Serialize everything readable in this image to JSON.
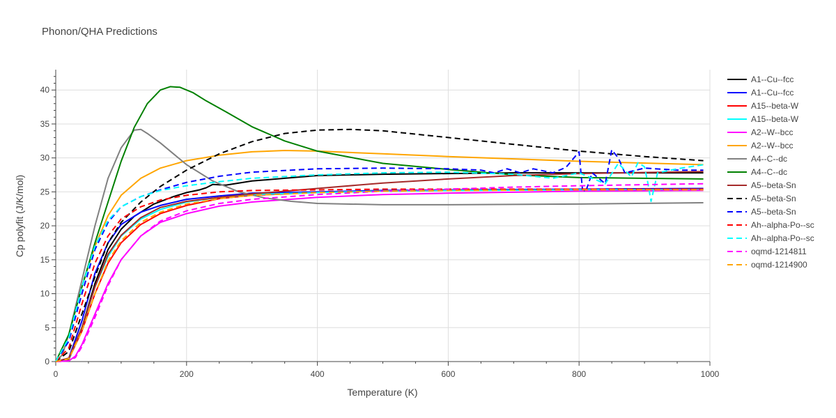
{
  "chart_data": {
    "type": "line",
    "title": "Phonon/QHA Predictions",
    "xlabel": "Temperature (K)",
    "ylabel": "Cp polyfit (J/K/mol)",
    "xlim": [
      0,
      1000
    ],
    "ylim": [
      0,
      43
    ],
    "xticks": [
      0,
      200,
      400,
      600,
      800,
      1000
    ],
    "yticks": [
      0,
      5,
      10,
      15,
      20,
      25,
      30,
      35,
      40
    ],
    "grid": true,
    "legend_position": "right",
    "series": [
      {
        "name": "A1--Cu--fcc",
        "color": "#000000",
        "dash": "solid",
        "points": [
          [
            0,
            0
          ],
          [
            20,
            0.3
          ],
          [
            40,
            5
          ],
          [
            60,
            11.5
          ],
          [
            80,
            16.5
          ],
          [
            100,
            19.5
          ],
          [
            120,
            21.4
          ],
          [
            150,
            23.2
          ],
          [
            180,
            24.3
          ],
          [
            200,
            24.9
          ],
          [
            220,
            25.3
          ],
          [
            230,
            25.6
          ],
          [
            240,
            26.1
          ],
          [
            260,
            26.0
          ],
          [
            300,
            26.6
          ],
          [
            350,
            27.0
          ],
          [
            400,
            27.4
          ],
          [
            500,
            27.6
          ],
          [
            600,
            27.7
          ],
          [
            700,
            27.8
          ],
          [
            800,
            27.8
          ],
          [
            900,
            27.8
          ],
          [
            990,
            27.8
          ]
        ]
      },
      {
        "name": "A1--Cu--fcc",
        "color": "#0000ff",
        "dash": "solid",
        "points": [
          [
            0,
            0
          ],
          [
            20,
            0.5
          ],
          [
            40,
            6
          ],
          [
            60,
            13
          ],
          [
            80,
            17.5
          ],
          [
            100,
            20.2
          ],
          [
            130,
            22.0
          ],
          [
            160,
            23.0
          ],
          [
            200,
            23.9
          ],
          [
            250,
            24.4
          ],
          [
            300,
            24.8
          ],
          [
            400,
            25.0
          ],
          [
            500,
            25.2
          ],
          [
            600,
            25.3
          ],
          [
            800,
            25.4
          ],
          [
            990,
            25.5
          ]
        ]
      },
      {
        "name": "A15--beta-W",
        "color": "#ff0000",
        "dash": "solid",
        "points": [
          [
            0,
            0
          ],
          [
            20,
            0.4
          ],
          [
            40,
            4.5
          ],
          [
            60,
            10
          ],
          [
            80,
            14.5
          ],
          [
            100,
            17.5
          ],
          [
            130,
            20.2
          ],
          [
            160,
            21.8
          ],
          [
            200,
            23.0
          ],
          [
            250,
            24.0
          ],
          [
            300,
            24.5
          ],
          [
            400,
            24.9
          ],
          [
            500,
            25.1
          ],
          [
            600,
            25.2
          ],
          [
            800,
            25.3
          ],
          [
            990,
            25.4
          ]
        ]
      },
      {
        "name": "A15--beta-W",
        "color": "#00ffff",
        "dash": "solid",
        "points": [
          [
            0,
            0
          ],
          [
            20,
            0.4
          ],
          [
            40,
            5
          ],
          [
            60,
            11
          ],
          [
            80,
            15.5
          ],
          [
            100,
            18.5
          ],
          [
            130,
            21
          ],
          [
            160,
            22.4
          ],
          [
            200,
            23.5
          ],
          [
            250,
            24.2
          ],
          [
            300,
            24.6
          ],
          [
            400,
            24.9
          ],
          [
            500,
            25.1
          ],
          [
            600,
            25.2
          ],
          [
            800,
            25.3
          ],
          [
            990,
            25.3
          ]
        ]
      },
      {
        "name": "A2--W--bcc",
        "color": "#ff00ff",
        "dash": "solid",
        "points": [
          [
            0,
            0
          ],
          [
            20,
            0.1
          ],
          [
            30,
            0.8
          ],
          [
            40,
            2.5
          ],
          [
            60,
            7
          ],
          [
            80,
            11.5
          ],
          [
            100,
            15
          ],
          [
            130,
            18.5
          ],
          [
            160,
            20.5
          ],
          [
            200,
            21.8
          ],
          [
            250,
            22.9
          ],
          [
            300,
            23.5
          ],
          [
            400,
            24.2
          ],
          [
            500,
            24.6
          ],
          [
            600,
            24.8
          ],
          [
            800,
            25.1
          ],
          [
            990,
            25.2
          ]
        ]
      },
      {
        "name": "A2--W--bcc",
        "color": "#ffa500",
        "dash": "solid",
        "points": [
          [
            0,
            0
          ],
          [
            10,
            1
          ],
          [
            20,
            4
          ],
          [
            40,
            11
          ],
          [
            60,
            17
          ],
          [
            80,
            21.5
          ],
          [
            100,
            24.5
          ],
          [
            130,
            27
          ],
          [
            160,
            28.5
          ],
          [
            200,
            29.6
          ],
          [
            250,
            30.4
          ],
          [
            300,
            30.9
          ],
          [
            350,
            31.1
          ],
          [
            400,
            31.0
          ],
          [
            500,
            30.6
          ],
          [
            600,
            30.2
          ],
          [
            800,
            29.5
          ],
          [
            990,
            29.0
          ]
        ]
      },
      {
        "name": "A4--C--dc",
        "color": "#808080",
        "dash": "solid",
        "points": [
          [
            0,
            0
          ],
          [
            10,
            1
          ],
          [
            20,
            4
          ],
          [
            40,
            12
          ],
          [
            60,
            20
          ],
          [
            80,
            27
          ],
          [
            100,
            31.5
          ],
          [
            120,
            34.1
          ],
          [
            130,
            34.2
          ],
          [
            140,
            33.6
          ],
          [
            160,
            32.2
          ],
          [
            180,
            30.6
          ],
          [
            200,
            29.0
          ],
          [
            240,
            26.6
          ],
          [
            280,
            25.0
          ],
          [
            320,
            24.1
          ],
          [
            360,
            23.6
          ],
          [
            400,
            23.3
          ],
          [
            500,
            23.1
          ],
          [
            600,
            23.1
          ],
          [
            800,
            23.2
          ],
          [
            990,
            23.4
          ]
        ]
      },
      {
        "name": "A4--C--dc",
        "color": "#008000",
        "dash": "solid",
        "points": [
          [
            0,
            0
          ],
          [
            20,
            4
          ],
          [
            40,
            11
          ],
          [
            60,
            17.5
          ],
          [
            80,
            23.5
          ],
          [
            100,
            29.5
          ],
          [
            120,
            34.5
          ],
          [
            140,
            38.0
          ],
          [
            160,
            40.0
          ],
          [
            175,
            40.5
          ],
          [
            190,
            40.4
          ],
          [
            210,
            39.6
          ],
          [
            230,
            38.4
          ],
          [
            260,
            36.8
          ],
          [
            300,
            34.6
          ],
          [
            350,
            32.5
          ],
          [
            400,
            31.0
          ],
          [
            500,
            29.2
          ],
          [
            600,
            28.3
          ],
          [
            700,
            27.5
          ],
          [
            800,
            27.1
          ],
          [
            990,
            26.9
          ]
        ]
      },
      {
        "name": "A5--beta-Sn",
        "color": "#a52a2a",
        "dash": "solid",
        "points": [
          [
            0,
            0
          ],
          [
            20,
            0.5
          ],
          [
            40,
            5
          ],
          [
            60,
            11
          ],
          [
            80,
            15.8
          ],
          [
            100,
            18.6
          ],
          [
            130,
            21.2
          ],
          [
            160,
            22.7
          ],
          [
            200,
            23.6
          ],
          [
            250,
            24.2
          ],
          [
            300,
            24.7
          ],
          [
            400,
            25.5
          ],
          [
            500,
            26.3
          ],
          [
            600,
            26.9
          ],
          [
            700,
            27.4
          ],
          [
            800,
            27.7
          ],
          [
            990,
            28.0
          ]
        ]
      },
      {
        "name": "A5--beta-Sn",
        "color": "#000000",
        "dash": "dash",
        "points": [
          [
            0,
            0
          ],
          [
            20,
            1.5
          ],
          [
            40,
            7
          ],
          [
            60,
            12.5
          ],
          [
            80,
            17.5
          ],
          [
            100,
            20.5
          ],
          [
            130,
            23.5
          ],
          [
            160,
            25.8
          ],
          [
            200,
            28.2
          ],
          [
            250,
            30.6
          ],
          [
            300,
            32.4
          ],
          [
            350,
            33.6
          ],
          [
            400,
            34.1
          ],
          [
            450,
            34.2
          ],
          [
            500,
            34.0
          ],
          [
            600,
            33.0
          ],
          [
            700,
            32.0
          ],
          [
            800,
            31.0
          ],
          [
            900,
            30.2
          ],
          [
            990,
            29.6
          ]
        ]
      },
      {
        "name": "A5--beta-Sn",
        "color": "#0000ff",
        "dash": "dash",
        "points": [
          [
            0,
            0
          ],
          [
            20,
            3
          ],
          [
            40,
            10
          ],
          [
            60,
            16.5
          ],
          [
            80,
            20.5
          ],
          [
            100,
            22.8
          ],
          [
            130,
            24.3
          ],
          [
            160,
            25.3
          ],
          [
            200,
            26.4
          ],
          [
            250,
            27.3
          ],
          [
            300,
            27.9
          ],
          [
            400,
            28.4
          ],
          [
            500,
            28.5
          ],
          [
            600,
            28.4
          ],
          [
            650,
            28.2
          ],
          [
            670,
            27.8
          ],
          [
            690,
            28.4
          ],
          [
            710,
            27.8
          ],
          [
            730,
            28.4
          ],
          [
            760,
            27.8
          ],
          [
            780,
            28.6
          ],
          [
            800,
            30.9
          ],
          [
            805,
            25.5
          ],
          [
            810,
            25.0
          ],
          [
            820,
            27.8
          ],
          [
            840,
            26.2
          ],
          [
            850,
            31.2
          ],
          [
            860,
            30.0
          ],
          [
            870,
            27.8
          ],
          [
            900,
            28.5
          ],
          [
            950,
            28.2
          ],
          [
            990,
            28.2
          ]
        ]
      },
      {
        "name": "Ah--alpha-Po--sc",
        "color": "#ff0000",
        "dash": "dash",
        "points": [
          [
            0,
            0
          ],
          [
            20,
            2
          ],
          [
            40,
            8.5
          ],
          [
            60,
            14.5
          ],
          [
            80,
            18.5
          ],
          [
            100,
            21
          ],
          [
            130,
            22.8
          ],
          [
            160,
            23.8
          ],
          [
            200,
            24.5
          ],
          [
            250,
            25.0
          ],
          [
            300,
            25.2
          ],
          [
            400,
            25.3
          ],
          [
            500,
            25.4
          ],
          [
            600,
            25.4
          ],
          [
            800,
            25.4
          ],
          [
            990,
            25.4
          ]
        ]
      },
      {
        "name": "Ah--alpha-Po--sc",
        "color": "#00ffff",
        "dash": "dash",
        "points": [
          [
            0,
            0
          ],
          [
            20,
            3.5
          ],
          [
            40,
            11
          ],
          [
            60,
            17
          ],
          [
            80,
            20.8
          ],
          [
            100,
            22.8
          ],
          [
            130,
            24.3
          ],
          [
            160,
            25.2
          ],
          [
            200,
            25.9
          ],
          [
            250,
            26.5
          ],
          [
            300,
            27.0
          ],
          [
            400,
            27.5
          ],
          [
            500,
            27.8
          ],
          [
            600,
            27.9
          ],
          [
            700,
            27.6
          ],
          [
            760,
            27.0
          ],
          [
            800,
            27.8
          ],
          [
            840,
            26.2
          ],
          [
            860,
            29.2
          ],
          [
            880,
            27.2
          ],
          [
            890,
            29.3
          ],
          [
            900,
            28.7
          ],
          [
            905,
            26.4
          ],
          [
            910,
            23.6
          ],
          [
            920,
            27.8
          ],
          [
            950,
            28.4
          ],
          [
            990,
            29.0
          ]
        ]
      },
      {
        "name": "oqmd-1214811",
        "color": "#ff00ff",
        "dash": "dash",
        "points": [
          [
            0,
            0
          ],
          [
            20,
            0.1
          ],
          [
            30,
            0.6
          ],
          [
            40,
            2.2
          ],
          [
            60,
            6.5
          ],
          [
            80,
            11.2
          ],
          [
            100,
            15
          ],
          [
            130,
            18.5
          ],
          [
            160,
            20.7
          ],
          [
            200,
            22.2
          ],
          [
            250,
            23.3
          ],
          [
            300,
            23.9
          ],
          [
            400,
            24.6
          ],
          [
            500,
            25.1
          ],
          [
            600,
            25.4
          ],
          [
            700,
            25.7
          ],
          [
            800,
            25.9
          ],
          [
            990,
            26.2
          ]
        ]
      },
      {
        "name": "oqmd-1214900",
        "color": "#ffa500",
        "dash": "dash",
        "points": [
          [
            0,
            0
          ],
          [
            20,
            0.4
          ],
          [
            40,
            4.5
          ],
          [
            60,
            10
          ],
          [
            80,
            14.8
          ],
          [
            100,
            17.8
          ],
          [
            130,
            20.5
          ],
          [
            160,
            22.0
          ],
          [
            200,
            23.2
          ],
          [
            250,
            24.0
          ],
          [
            300,
            24.5
          ],
          [
            400,
            24.9
          ],
          [
            500,
            25.1
          ],
          [
            600,
            25.2
          ],
          [
            800,
            25.3
          ],
          [
            990,
            25.3
          ]
        ]
      }
    ]
  }
}
